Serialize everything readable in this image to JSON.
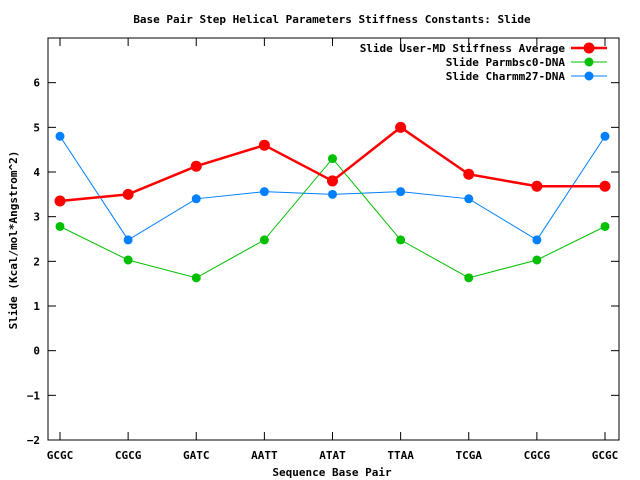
{
  "chart_data": {
    "type": "line",
    "title": "Base Pair Step Helical Parameters Stiffness Constants: Slide",
    "xlabel": "Sequence Base Pair",
    "ylabel": "Slide (Kcal/mol*Angstrom^2)",
    "categories": [
      "GCGC",
      "CGCG",
      "GATC",
      "AATT",
      "ATAT",
      "TTAA",
      "TCGA",
      "CGCG",
      "GCGC"
    ],
    "ylim": [
      -2,
      7
    ],
    "yticks": [
      -2,
      -1,
      0,
      1,
      2,
      3,
      4,
      5,
      6
    ],
    "grid": false,
    "legend_position": "top-right",
    "series": [
      {
        "name": "Slide User-MD Stiffness Average",
        "color": "#ff0000",
        "values": [
          3.35,
          3.5,
          4.13,
          4.6,
          3.8,
          5.0,
          3.95,
          3.68,
          3.68
        ]
      },
      {
        "name": "Slide Parmbsc0-DNA",
        "color": "#00c000",
        "values": [
          2.78,
          2.03,
          1.63,
          2.48,
          4.3,
          2.48,
          1.63,
          2.03,
          2.78
        ]
      },
      {
        "name": "Slide Charmm27-DNA",
        "color": "#0080ff",
        "values": [
          4.8,
          2.48,
          3.4,
          3.56,
          3.5,
          3.56,
          3.4,
          2.48,
          4.8
        ]
      }
    ]
  }
}
